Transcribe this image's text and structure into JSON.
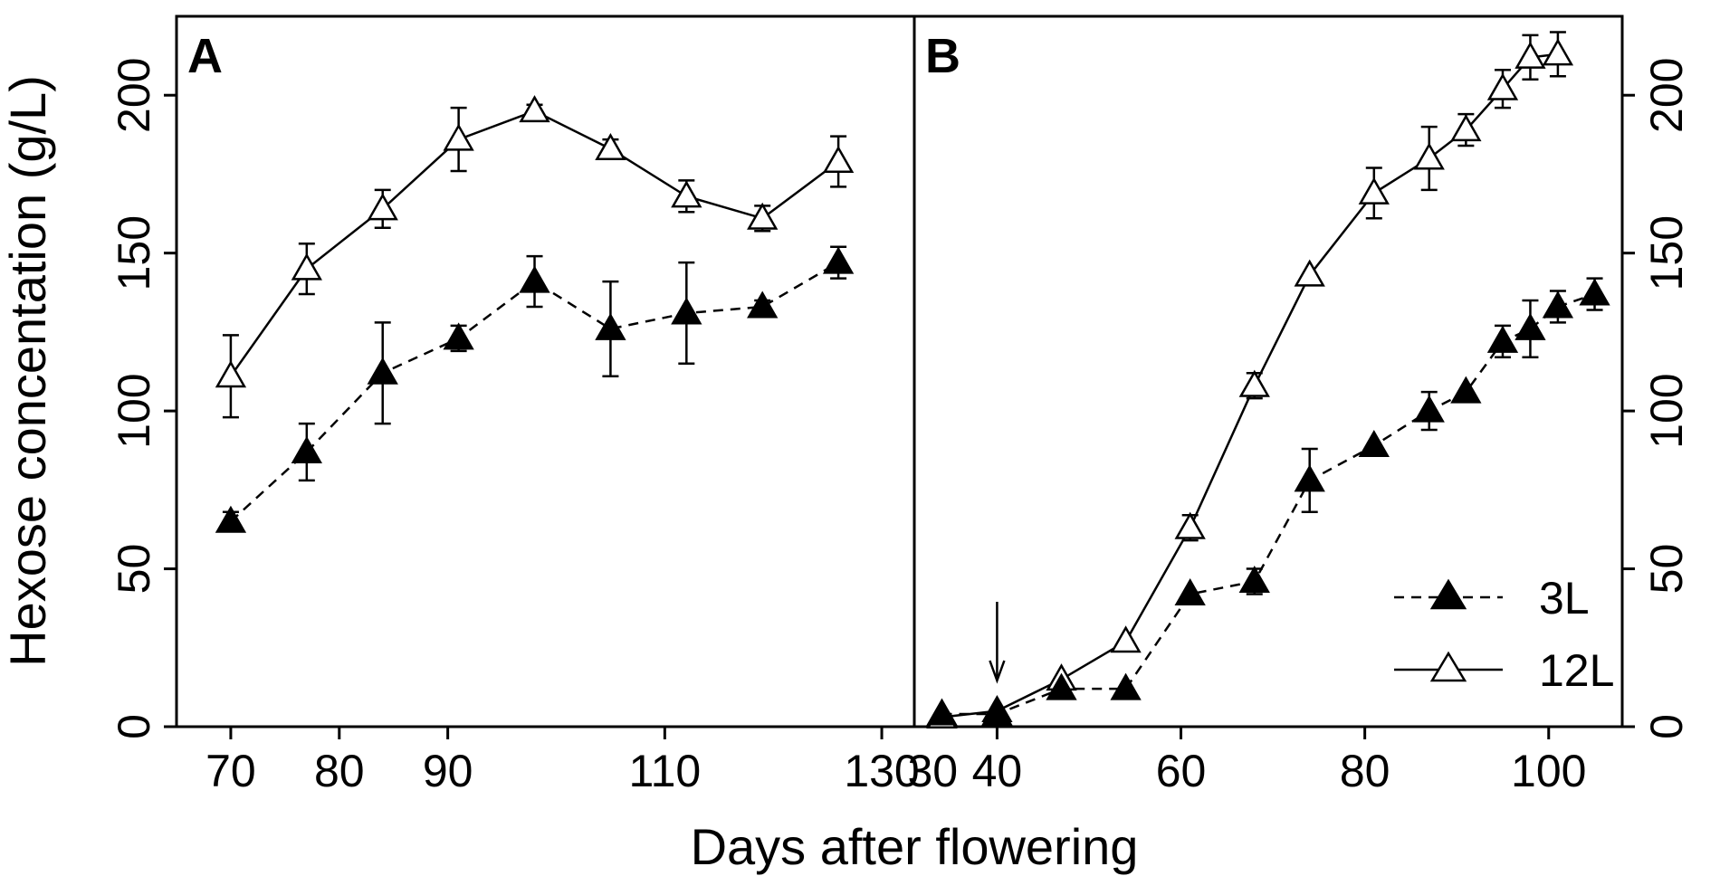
{
  "chart_data": [
    {
      "panel": "A",
      "type": "line",
      "xlim": [
        65,
        133
      ],
      "ylim": [
        0,
        225
      ],
      "x_ticks": [
        70,
        80,
        90,
        110,
        130
      ],
      "x_tick_labels": [
        "70",
        "80",
        "90",
        "110",
        "130"
      ],
      "y_ticks": [
        0,
        50,
        100,
        150,
        200
      ],
      "y_tick_labels": [
        "0",
        "50",
        "100",
        "150",
        "200"
      ],
      "y_axis_side": "left",
      "series": [
        {
          "name": "12L",
          "marker": "open-triangle",
          "line": "solid",
          "x": [
            70,
            77,
            84,
            91,
            98,
            105,
            112,
            119,
            126
          ],
          "y": [
            111,
            145,
            164,
            186,
            195,
            183,
            168,
            161,
            179
          ],
          "err": [
            13,
            8,
            6,
            10,
            2,
            3,
            5,
            4,
            8
          ]
        },
        {
          "name": "3L",
          "marker": "filled-triangle",
          "line": "dashed",
          "x": [
            70,
            77,
            84,
            91,
            98,
            105,
            112,
            119,
            126
          ],
          "y": [
            65,
            87,
            112,
            123,
            141,
            126,
            131,
            133,
            147
          ],
          "err": [
            3,
            9,
            16,
            4,
            8,
            15,
            16,
            2,
            5
          ]
        }
      ]
    },
    {
      "panel": "B",
      "type": "line",
      "xlim": [
        31,
        108
      ],
      "ylim": [
        0,
        225
      ],
      "x_ticks": [
        40,
        60,
        80,
        100
      ],
      "x_tick_labels": [
        "40",
        "60",
        "80",
        "100"
      ],
      "y_ticks": [
        0,
        50,
        100,
        150,
        200
      ],
      "y_tick_labels": [
        "0",
        "50",
        "100",
        "150",
        "200"
      ],
      "y_axis_side": "right",
      "extra_tick_labels": [
        {
          "x": 33,
          "label": "30"
        }
      ],
      "arrow_annotation": {
        "x": 40
      },
      "series": [
        {
          "name": "12L",
          "marker": "open-triangle",
          "line": "solid",
          "x": [
            34,
            40,
            47,
            54,
            61,
            68,
            74,
            81,
            87,
            91,
            95,
            98,
            101
          ],
          "y": [
            3,
            5,
            15,
            27,
            63,
            108,
            143,
            169,
            180,
            189,
            202,
            212,
            213
          ],
          "err": [
            0,
            0,
            0,
            0,
            4,
            4,
            0,
            8,
            10,
            5,
            6,
            7,
            7
          ]
        },
        {
          "name": "3L",
          "marker": "filled-triangle",
          "line": "dashed",
          "x": [
            34,
            40,
            47,
            54,
            61,
            68,
            74,
            81,
            87,
            91,
            95,
            98,
            101,
            105
          ],
          "y": [
            4,
            4,
            12,
            12,
            42,
            46,
            78,
            89,
            100,
            106,
            122,
            126,
            133,
            137
          ],
          "err": [
            0,
            0,
            0,
            0,
            0,
            4,
            10,
            0,
            6,
            0,
            5,
            9,
            5,
            5
          ]
        }
      ]
    }
  ],
  "shared": {
    "xlabel": "Days after flowering",
    "ylabel": "Hexose concentation (g/L)"
  },
  "legend": {
    "position": "bottom-right of panel B",
    "entries": [
      {
        "label": "3L",
        "marker": "filled-triangle",
        "line": "dashed"
      },
      {
        "label": "12L",
        "marker": "open-triangle",
        "line": "solid"
      }
    ]
  },
  "colors": {
    "ink": "#000000",
    "background": "#ffffff"
  }
}
